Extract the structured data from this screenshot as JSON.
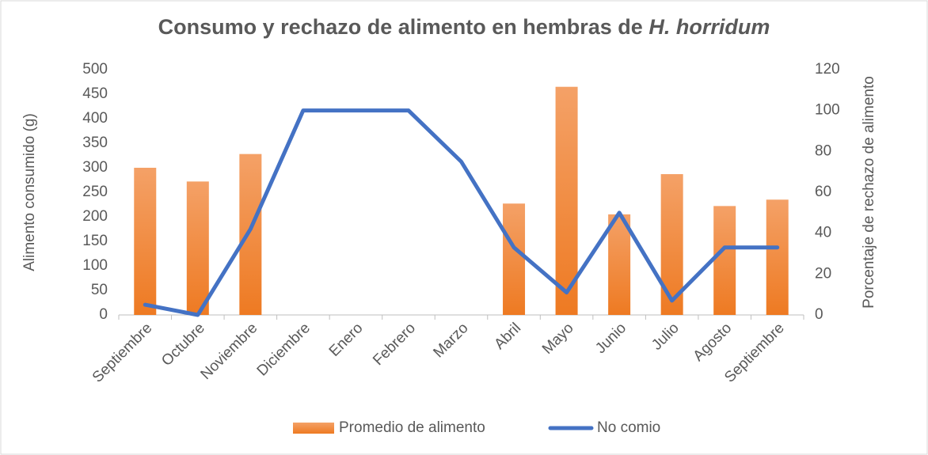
{
  "chart_data": {
    "type": "bar",
    "title": [
      "Consumo y rechazo de alimento en hembras de",
      "H. horridum"
    ],
    "ylabel": "Alimento consumido (g)",
    "y2label": "Porcentaje de rechazo de alimento",
    "categories": [
      "Septiembre",
      "Octubre",
      "Noviembre",
      "Diciembre",
      "Enero",
      "Febrero",
      "Marzo",
      "Abril",
      "Mayo",
      "Junio",
      "Julio",
      "Agosto",
      "Septiembre"
    ],
    "series": [
      {
        "name": "Promedio de alimento",
        "type": "bar",
        "color": "#ed7d31",
        "values": [
          300,
          272,
          328,
          null,
          null,
          null,
          null,
          227,
          465,
          205,
          287,
          222,
          235
        ]
      },
      {
        "name": "No comio",
        "type": "line",
        "axis": "y2",
        "color": "#4472c4",
        "values": [
          5,
          0,
          42,
          100,
          100,
          100,
          75,
          33,
          11,
          50,
          7,
          33,
          33
        ]
      }
    ],
    "ylim": [
      0,
      500
    ],
    "yticks": [
      0,
      50,
      100,
      150,
      200,
      250,
      300,
      350,
      400,
      450,
      500
    ],
    "y2lim": [
      0,
      120
    ],
    "y2ticks": [
      0,
      20,
      40,
      60,
      80,
      100,
      120
    ],
    "legend": "bottom"
  }
}
